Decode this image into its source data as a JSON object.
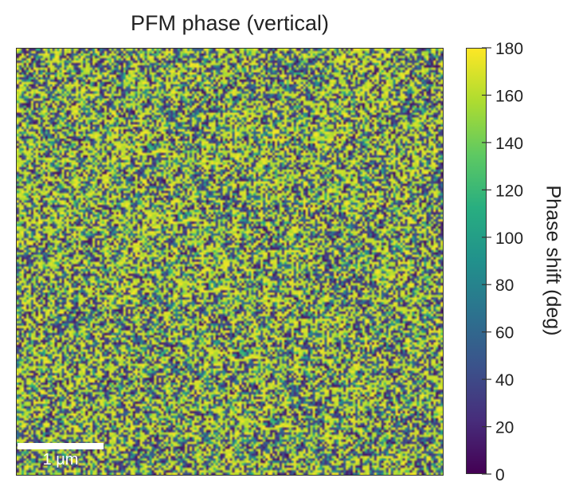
{
  "chart_data": {
    "type": "heatmap",
    "title": "PFM phase (vertical)",
    "colorbar": {
      "label": "Phase shift (deg)",
      "min": 0,
      "max": 180,
      "ticks": [
        0,
        20,
        40,
        60,
        80,
        100,
        120,
        140,
        160,
        180
      ],
      "colormap": [
        "#440154",
        "#472d7b",
        "#3b528b",
        "#2c728e",
        "#21918c",
        "#28ae80",
        "#5ec962",
        "#addc30",
        "#fde725"
      ]
    },
    "scale_bar": {
      "label": "1 μm"
    }
  }
}
